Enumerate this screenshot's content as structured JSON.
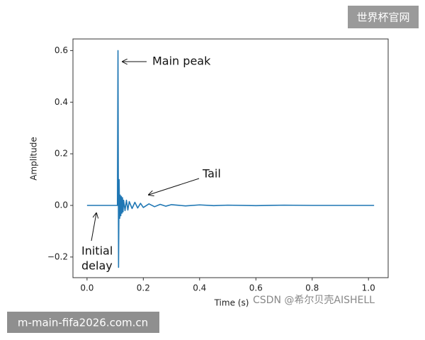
{
  "chart_data": {
    "type": "line",
    "xlabel": "Time (s)",
    "ylabel": "Amplitude",
    "x": [
      0,
      0.05,
      0.1,
      0.108,
      0.11,
      0.112,
      0.114,
      0.116,
      0.118,
      0.12,
      0.122,
      0.124,
      0.126,
      0.128,
      0.13,
      0.135,
      0.14,
      0.145,
      0.15,
      0.16,
      0.17,
      0.18,
      0.19,
      0.2,
      0.22,
      0.24,
      0.26,
      0.28,
      0.3,
      0.35,
      0.4,
      0.45,
      0.5,
      0.6,
      0.7,
      0.8,
      0.9,
      1.0,
      1.02
    ],
    "values": [
      0,
      0,
      0,
      0,
      0.6,
      -0.24,
      0.1,
      -0.05,
      0.04,
      -0.04,
      0.035,
      -0.03,
      0.03,
      -0.025,
      0.02,
      -0.02,
      0.02,
      -0.018,
      0.015,
      -0.012,
      0.012,
      -0.01,
      0.008,
      -0.008,
      0.006,
      -0.005,
      0.004,
      -0.003,
      0.003,
      -0.002,
      0.002,
      -0.001,
      0.001,
      -0.001,
      0.001,
      0,
      0,
      0,
      0
    ],
    "color": "#1f77b4",
    "xlim": [
      -0.05,
      1.07
    ],
    "xticks": [
      {
        "value": 0,
        "label": "0.0"
      },
      0.2,
      0.4,
      0.6,
      0.8,
      {
        "value": 1,
        "label": "1.0"
      }
    ],
    "ylim": [
      -0.28,
      0.645
    ],
    "yticks": [
      {
        "value": -0.2,
        "label": "−0.2"
      },
      {
        "value": 0,
        "label": "0.0"
      },
      0.2,
      0.4,
      0.6
    ],
    "annotations": {
      "main_peak": "Main peak",
      "tail": "Tail",
      "initial_delay": [
        "Initial",
        "delay"
      ]
    }
  },
  "watermarks": {
    "top_right": "世界杯官网",
    "bottom_left": "m-main-fifa2026.com.cn",
    "credit": "CSDN @希尔贝壳AISHELL"
  }
}
